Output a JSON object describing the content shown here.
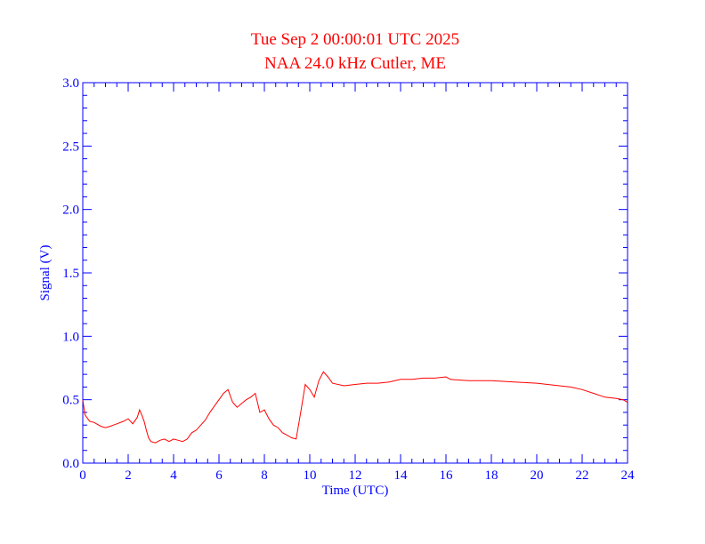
{
  "chart_data": {
    "type": "line",
    "title": "Tue Sep 2 00:00:01 UTC 2025",
    "subtitle": "NAA 24.0 kHz Cutler, ME",
    "xlabel": "Time (UTC)",
    "ylabel": "Signal (V)",
    "xlim": [
      0,
      24
    ],
    "ylim": [
      0.0,
      3.0
    ],
    "xticks": [
      0,
      2,
      4,
      6,
      8,
      10,
      12,
      14,
      16,
      18,
      20,
      22,
      24
    ],
    "yticks": [
      0.0,
      0.5,
      1.0,
      1.5,
      2.0,
      2.5,
      3.0
    ],
    "xtick_labels": [
      "0",
      "2",
      "4",
      "6",
      "8",
      "10",
      "12",
      "14",
      "16",
      "18",
      "20",
      "22",
      "24"
    ],
    "ytick_labels": [
      "0.0",
      "0.5",
      "1.0",
      "1.5",
      "2.0",
      "2.5",
      "3.0"
    ],
    "grid": false,
    "colors": {
      "series": "#ff0000",
      "axes": "#0000ff",
      "title": "#ff0000"
    },
    "series": [
      {
        "x": [
          0.0,
          0.1,
          0.3,
          0.5,
          0.8,
          1.0,
          1.2,
          1.5,
          1.8,
          2.0,
          2.2,
          2.4,
          2.5,
          2.6,
          2.7,
          2.8,
          2.9,
          3.0,
          3.2,
          3.4,
          3.6,
          3.8,
          4.0,
          4.2,
          4.4,
          4.6,
          4.8,
          5.0,
          5.2,
          5.4,
          5.6,
          5.8,
          6.0,
          6.2,
          6.4,
          6.6,
          6.8,
          7.0,
          7.2,
          7.4,
          7.6,
          7.8,
          8.0,
          8.2,
          8.4,
          8.6,
          8.8,
          9.0,
          9.2,
          9.4,
          9.6,
          9.8,
          10.0,
          10.2,
          10.4,
          10.6,
          10.8,
          11.0,
          11.5,
          12.0,
          12.5,
          13.0,
          13.5,
          14.0,
          14.5,
          15.0,
          15.5,
          16.0,
          16.2,
          17.0,
          18.0,
          19.0,
          20.0,
          21.0,
          21.5,
          22.0,
          22.5,
          23.0,
          23.5,
          23.8,
          24.0
        ],
        "y": [
          0.5,
          0.38,
          0.33,
          0.32,
          0.29,
          0.28,
          0.29,
          0.31,
          0.33,
          0.35,
          0.31,
          0.36,
          0.42,
          0.38,
          0.33,
          0.26,
          0.2,
          0.17,
          0.16,
          0.18,
          0.19,
          0.17,
          0.19,
          0.18,
          0.17,
          0.19,
          0.24,
          0.26,
          0.3,
          0.34,
          0.4,
          0.45,
          0.5,
          0.55,
          0.58,
          0.48,
          0.44,
          0.47,
          0.5,
          0.52,
          0.55,
          0.4,
          0.42,
          0.35,
          0.3,
          0.28,
          0.24,
          0.22,
          0.2,
          0.19,
          0.4,
          0.62,
          0.58,
          0.52,
          0.65,
          0.72,
          0.68,
          0.63,
          0.61,
          0.62,
          0.63,
          0.63,
          0.64,
          0.66,
          0.66,
          0.67,
          0.67,
          0.68,
          0.66,
          0.65,
          0.65,
          0.64,
          0.63,
          0.61,
          0.6,
          0.58,
          0.55,
          0.52,
          0.51,
          0.5,
          0.48
        ]
      }
    ]
  }
}
